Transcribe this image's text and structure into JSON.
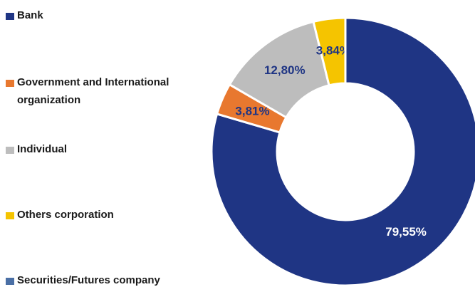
{
  "chart_data": {
    "type": "donut",
    "categories": [
      "Bank",
      "Government and International organization",
      "Individual",
      "Others corporation",
      "Securities/Futures company"
    ],
    "values": [
      79.55,
      3.81,
      12.8,
      3.84,
      0
    ],
    "value_labels": [
      "79,55%",
      "3,81%",
      "12,80%",
      "3,84%",
      null
    ],
    "colors": [
      "#1f3584",
      "#e8782f",
      "#bdbdbd",
      "#f5c400",
      "#4a6fa5"
    ]
  }
}
